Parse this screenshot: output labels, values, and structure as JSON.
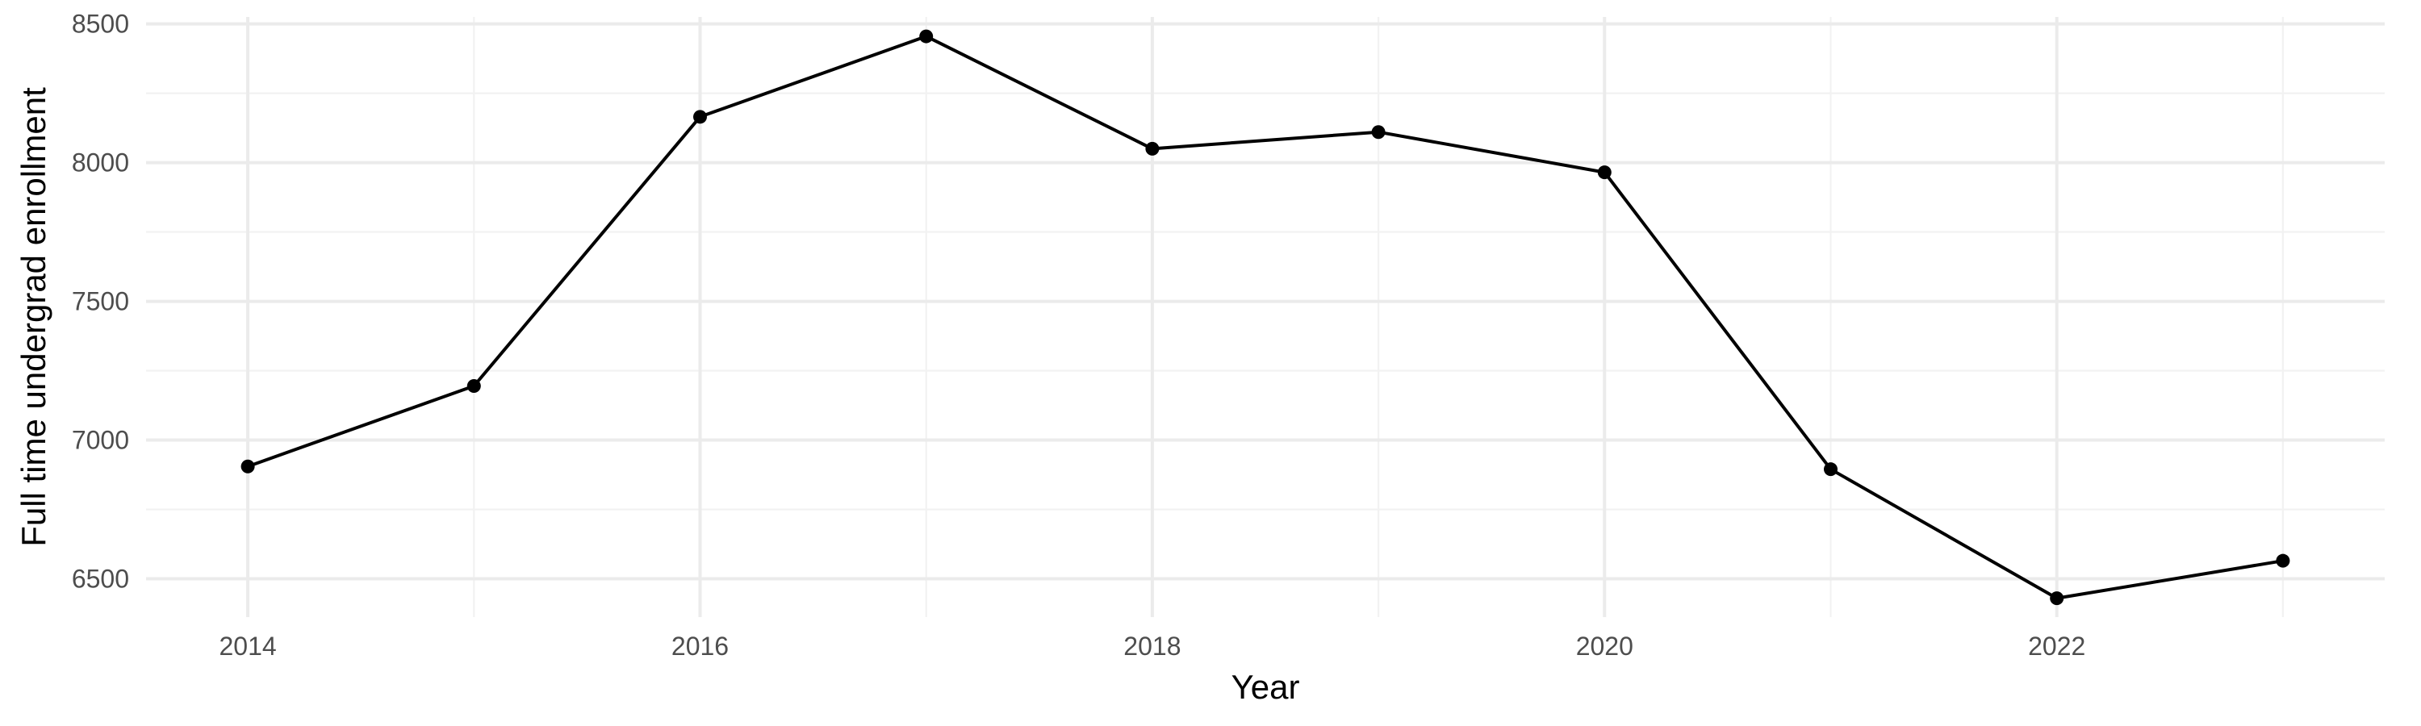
{
  "chart_data": {
    "type": "line",
    "title": "",
    "xlabel": "Year",
    "ylabel": "Full time undergrad enrollment",
    "x": [
      2014,
      2015,
      2016,
      2017,
      2018,
      2019,
      2020,
      2021,
      2022,
      2023
    ],
    "series": [
      {
        "values": [
          6905,
          7195,
          8165,
          8455,
          8050,
          8110,
          7965,
          6895,
          6430,
          6565
        ],
        "color": "#000000"
      }
    ],
    "xticks": [
      "2014",
      "2016",
      "2018",
      "2020",
      "2022"
    ],
    "yticks": [
      "6500",
      "7000",
      "7500",
      "8000",
      "8500"
    ],
    "xlim": [
      2013.55,
      2023.45
    ],
    "ylim": [
      6362,
      8525
    ],
    "grid": true,
    "legend": "none"
  }
}
